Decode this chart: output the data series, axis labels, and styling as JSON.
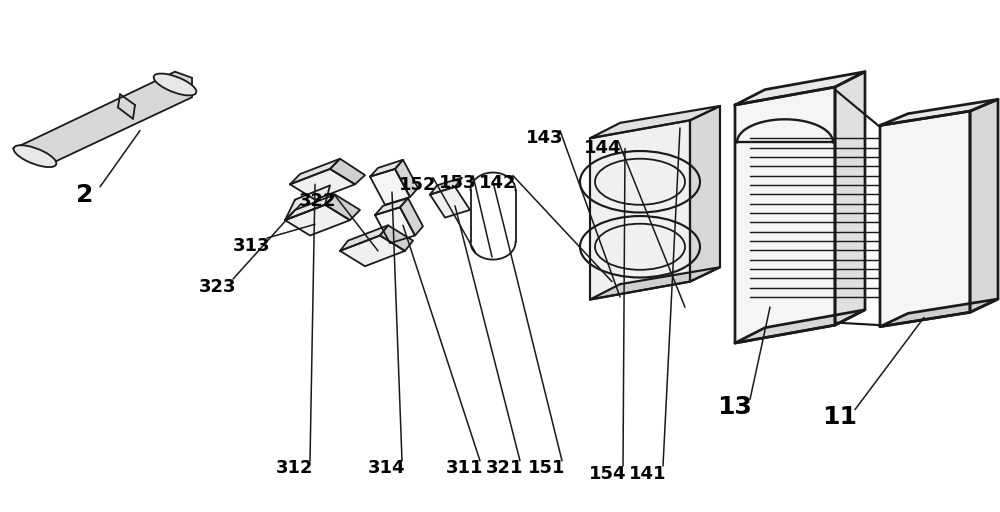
{
  "background_color": "#ffffff",
  "fig_width": 10.0,
  "fig_height": 5.12,
  "line_color": "#1a1a1a",
  "line_width": 1.3,
  "label_arrows": {
    "2": {
      "lpos": [
        0.085,
        0.62
      ],
      "apos": [
        0.14,
        0.745
      ]
    },
    "312": {
      "lpos": [
        0.295,
        0.085
      ],
      "apos": [
        0.315,
        0.64
      ]
    },
    "314": {
      "lpos": [
        0.387,
        0.085
      ],
      "apos": [
        0.392,
        0.625
      ]
    },
    "311": {
      "lpos": [
        0.465,
        0.085
      ],
      "apos": [
        0.403,
        0.56
      ]
    },
    "321": {
      "lpos": [
        0.505,
        0.085
      ],
      "apos": [
        0.455,
        0.598
      ]
    },
    "151": {
      "lpos": [
        0.547,
        0.085
      ],
      "apos": [
        0.493,
        0.645
      ]
    },
    "154": {
      "lpos": [
        0.608,
        0.075
      ],
      "apos": [
        0.625,
        0.71
      ]
    },
    "141": {
      "lpos": [
        0.648,
        0.075
      ],
      "apos": [
        0.68,
        0.75
      ]
    },
    "13": {
      "lpos": [
        0.735,
        0.205
      ],
      "apos": [
        0.77,
        0.4
      ]
    },
    "11": {
      "lpos": [
        0.84,
        0.185
      ],
      "apos": [
        0.924,
        0.38
      ]
    },
    "323": {
      "lpos": [
        0.218,
        0.44
      ],
      "apos": [
        0.3,
        0.6
      ]
    },
    "313": {
      "lpos": [
        0.252,
        0.52
      ],
      "apos": [
        0.315,
        0.562
      ]
    },
    "322": {
      "lpos": [
        0.318,
        0.608
      ],
      "apos": [
        0.378,
        0.51
      ]
    },
    "152": {
      "lpos": [
        0.418,
        0.638
      ],
      "apos": [
        0.476,
        0.505
      ]
    },
    "153": {
      "lpos": [
        0.458,
        0.642
      ],
      "apos": [
        0.492,
        0.498
      ]
    },
    "142": {
      "lpos": [
        0.498,
        0.642
      ],
      "apos": [
        0.612,
        0.45
      ]
    },
    "143": {
      "lpos": [
        0.545,
        0.73
      ],
      "apos": [
        0.62,
        0.42
      ]
    },
    "144": {
      "lpos": [
        0.603,
        0.71
      ],
      "apos": [
        0.685,
        0.4
      ]
    }
  },
  "large_labels": [
    "2",
    "11",
    "13"
  ]
}
